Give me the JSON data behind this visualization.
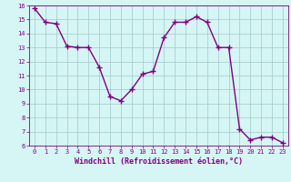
{
  "hours": [
    0,
    1,
    2,
    3,
    4,
    5,
    6,
    7,
    8,
    9,
    10,
    11,
    12,
    13,
    14,
    15,
    16,
    17,
    18,
    19,
    20,
    21,
    22,
    23
  ],
  "values": [
    15.8,
    14.8,
    14.7,
    13.1,
    13.0,
    13.0,
    11.6,
    9.5,
    9.2,
    10.0,
    11.1,
    11.3,
    13.7,
    14.8,
    14.8,
    15.2,
    14.8,
    13.0,
    13.0,
    7.2,
    6.4,
    6.6,
    6.6,
    6.2
  ],
  "line_color": "#800080",
  "marker_color": "#800080",
  "bg_color": "#d6f5f5",
  "grid_color": "#a0c8c8",
  "xlabel": "Windchill (Refroidissement éolien,°C)",
  "xlabel_color": "#800080",
  "tick_color": "#800080",
  "spine_color": "#800080",
  "ylim": [
    6,
    16
  ],
  "xlim": [
    -0.5,
    23.5
  ],
  "yticks": [
    6,
    7,
    8,
    9,
    10,
    11,
    12,
    13,
    14,
    15,
    16
  ],
  "xticks": [
    0,
    1,
    2,
    3,
    4,
    5,
    6,
    7,
    8,
    9,
    10,
    11,
    12,
    13,
    14,
    15,
    16,
    17,
    18,
    19,
    20,
    21,
    22,
    23
  ],
  "marker_size": 4,
  "line_width": 1.0,
  "tick_fontsize": 5.0,
  "xlabel_fontsize": 6.0
}
